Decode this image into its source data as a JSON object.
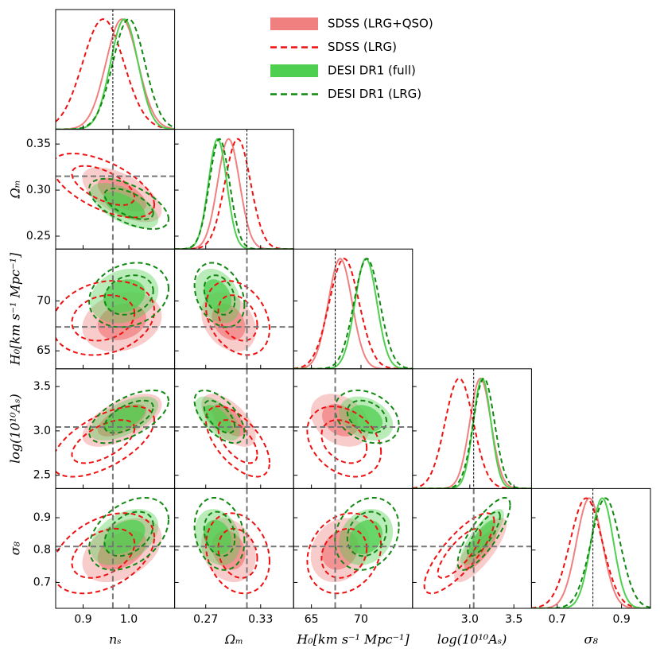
{
  "chart_data": {
    "type": "corner",
    "params": [
      {
        "label": "nₛ",
        "lim": [
          0.84,
          1.1
        ],
        "xticks": [
          0.9,
          {
            "value": 1,
            "label": "1.0"
          }
        ],
        "fiducial": 0.965
      },
      {
        "label": "Ωₘ",
        "lim": [
          0.236,
          0.366
        ],
        "xticks": [
          0.27,
          0.33
        ],
        "yticks": [
          0.25,
          {
            "value": 0.3,
            "label": "0.30"
          },
          0.35
        ],
        "fiducial": 0.315
      },
      {
        "label": "H₀[km s⁻¹ Mpc⁻¹]",
        "lim": [
          63.2,
          75.2
        ],
        "xticks": [
          65,
          70
        ],
        "yticks": [
          65,
          70
        ],
        "fiducial": 67.4
      },
      {
        "label": "log(10¹⁰Aₛ)",
        "lim": [
          2.35,
          3.7
        ],
        "xticks": [
          {
            "value": 3,
            "label": "3.0"
          },
          3.5
        ],
        "yticks": [
          2.5,
          {
            "value": 3,
            "label": "3.0"
          },
          3.5
        ],
        "fiducial": 3.044
      },
      {
        "label": "σ₈",
        "lim": [
          0.62,
          0.99
        ],
        "xticks": [
          0.7,
          0.9
        ],
        "yticks": [
          0.7,
          0.8,
          0.9
        ],
        "fiducial": 0.811
      }
    ],
    "correlations": [
      [
        -0.6
      ],
      [
        0.2,
        -0.3
      ],
      [
        0.6,
        -0.6,
        -0.3
      ],
      [
        0.4,
        -0.2,
        0.2,
        0.8
      ]
    ],
    "series": [
      {
        "name": "SDSS (LRG+QSO)",
        "color": "#f08080",
        "style": "filled",
        "mean": [
          0.985,
          0.295,
          67.9,
          3.12,
          0.8
        ],
        "sigma": [
          0.035,
          0.012,
          1.2,
          0.12,
          0.04
        ]
      },
      {
        "name": "SDSS (LRG)",
        "color": "#ee1111",
        "style": "dashed",
        "mean": [
          0.944,
          0.305,
          68.3,
          2.88,
          0.79
        ],
        "sigma": [
          0.045,
          0.014,
          1.5,
          0.16,
          0.05
        ]
      },
      {
        "name": "DESI DR1 (full)",
        "color": "#4fcf4f",
        "style": "filled",
        "mean": [
          0.99,
          0.283,
          70.5,
          3.14,
          0.84
        ],
        "sigma": [
          0.03,
          0.01,
          1.1,
          0.1,
          0.035
        ]
      },
      {
        "name": "DESI DR1 (LRG)",
        "color": "#118811",
        "style": "dashed",
        "mean": [
          1.0,
          0.285,
          70.6,
          3.16,
          0.85
        ],
        "sigma": [
          0.035,
          0.011,
          1.3,
          0.12,
          0.045
        ]
      }
    ]
  }
}
